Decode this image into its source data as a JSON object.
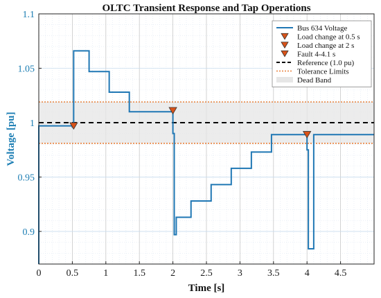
{
  "chart_data": {
    "type": "line",
    "title": "OLTC Transient Response and Tap Operations",
    "xlabel": "Time [s]",
    "ylabel": "Voltage [pu]",
    "xlim": [
      0,
      5
    ],
    "ylim": [
      0.87,
      1.1
    ],
    "x_ticks": [
      0,
      0.5,
      1,
      1.5,
      2,
      2.5,
      3,
      3.5,
      4,
      4.5
    ],
    "x_tick_labels": [
      "0",
      "0.5",
      "1",
      "1.5",
      "2",
      "2.5",
      "3",
      "3.5",
      "4",
      "4.5"
    ],
    "y_ticks": [
      0.9,
      0.95,
      1,
      1.05,
      1.1
    ],
    "y_tick_labels": [
      "0.9",
      "0.95",
      "1",
      "1.05",
      "1.1"
    ],
    "grid": true,
    "minor_grid": true,
    "legend_position": "top-right",
    "colors": {
      "voltage": "#1f77b4",
      "marker": "#d95319",
      "reference": "#000000",
      "tolerance": "#e8803a",
      "dead_band": "#e6e6e6",
      "ylabel": "#1b7db3"
    },
    "dead_band": [
      0.981,
      1.019
    ],
    "reference": 1.0,
    "tolerance_limits": [
      0.981,
      1.019
    ],
    "series": [
      {
        "name": "Bus 634 Voltage",
        "x": [
          0,
          0,
          0.005,
          0.005,
          0.5,
          0.5,
          0.52,
          0.52,
          0.75,
          0.75,
          1.05,
          1.05,
          1.35,
          1.35,
          2.0,
          2.0,
          2.02,
          2.02,
          2.05,
          2.05,
          2.27,
          2.27,
          2.57,
          2.57,
          2.87,
          2.87,
          3.17,
          3.17,
          3.47,
          3.47,
          4.0,
          4.0,
          4.02,
          4.02,
          4.1,
          4.1,
          5.0
        ],
        "y": [
          0.87,
          0.997,
          0.997,
          0.997,
          0.997,
          0.996,
          0.996,
          1.066,
          1.066,
          1.047,
          1.047,
          1.028,
          1.028,
          1.01,
          1.01,
          0.99,
          0.99,
          0.897,
          0.897,
          0.913,
          0.913,
          0.928,
          0.928,
          0.943,
          0.943,
          0.958,
          0.958,
          0.973,
          0.973,
          0.989,
          0.989,
          0.975,
          0.975,
          0.884,
          0.884,
          0.989,
          0.989
        ]
      },
      {
        "name": "Load change at 0.5 s",
        "x": [
          0.52
        ],
        "y": [
          0.997
        ]
      },
      {
        "name": "Load change at 2 s",
        "x": [
          2.0
        ],
        "y": [
          1.011
        ]
      },
      {
        "name": "Fault 4-4.1 s",
        "x": [
          4.0
        ],
        "y": [
          0.989
        ]
      },
      {
        "name": "Reference (1.0 pu)"
      },
      {
        "name": "Tolerance Limits"
      },
      {
        "name": "Dead Band"
      }
    ]
  }
}
